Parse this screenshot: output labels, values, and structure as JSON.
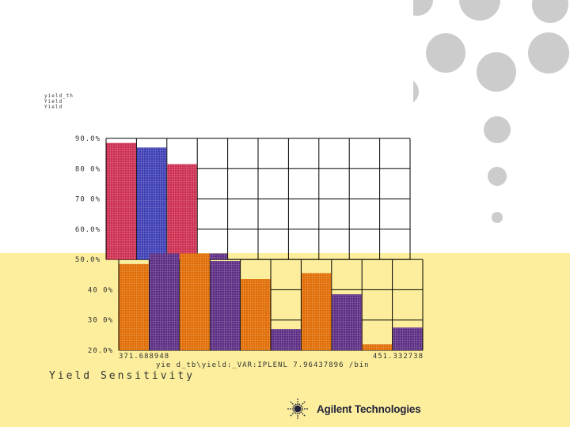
{
  "legend_lines": [
    "yield_th",
    "Yield",
    "Yield"
  ],
  "caption": "Yield Sensitivity",
  "brand": "Agilent Technologies",
  "colors": {
    "band": "#fcee9c",
    "dots": "#cccccc",
    "series1": "#cc2b4e",
    "series2": "#3c3cb4",
    "series3": "#e06a00",
    "series4": "#5a2a82"
  },
  "chart_data": {
    "type": "bar",
    "x_min_label": "371.688948",
    "x_max_label": "451.332738",
    "xlabel": "yie d_tb\\yield:_VAR:IPLENL 7.96437896 /bin",
    "ytick_labels": [
      "90.0%",
      "80 0%",
      "70 0%",
      "60.0%",
      "50.0%",
      "40 0%",
      "30 0%",
      "20.0%"
    ],
    "ylim": [
      20,
      90
    ],
    "grid": true,
    "series": [
      {
        "values": [
          88.5,
          87,
          81.5,
          52
        ]
      },
      {
        "values": [
          48.5,
          52,
          52,
          49.5,
          43.5,
          27,
          45.5,
          38.5,
          22,
          27.5
        ]
      }
    ]
  }
}
